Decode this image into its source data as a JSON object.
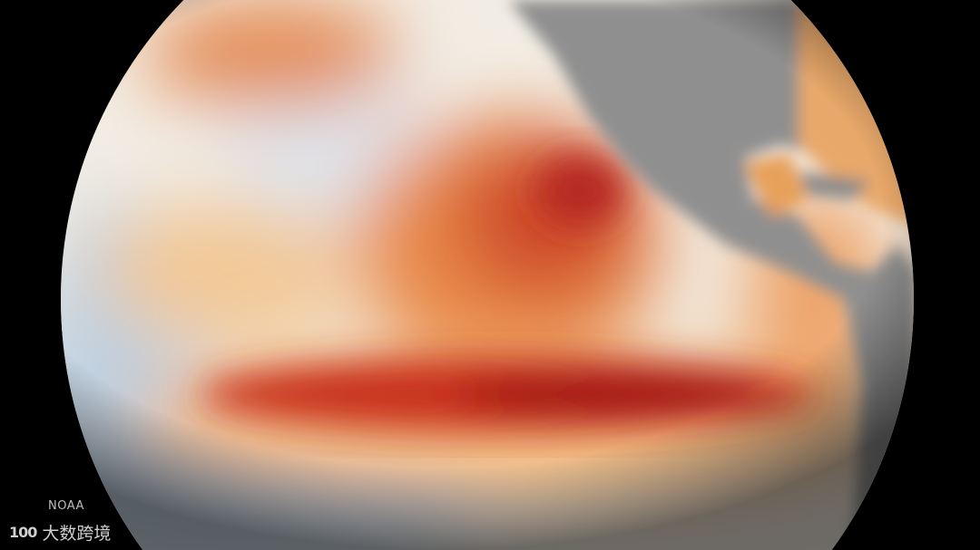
{
  "image": {
    "subject": "globe-sea-surface-temperature-anomaly",
    "colors": {
      "warm_dark": "#a8141a",
      "warm_mid": "#e0652e",
      "warm_light": "#f3c28a",
      "neutral": "#f4efe6",
      "cool": "#a9c4dc",
      "land": "#8e8e8e",
      "background": "#000000"
    }
  },
  "credit": "NOAA",
  "watermark": {
    "logo_text": "100",
    "text": "大数跨境"
  }
}
